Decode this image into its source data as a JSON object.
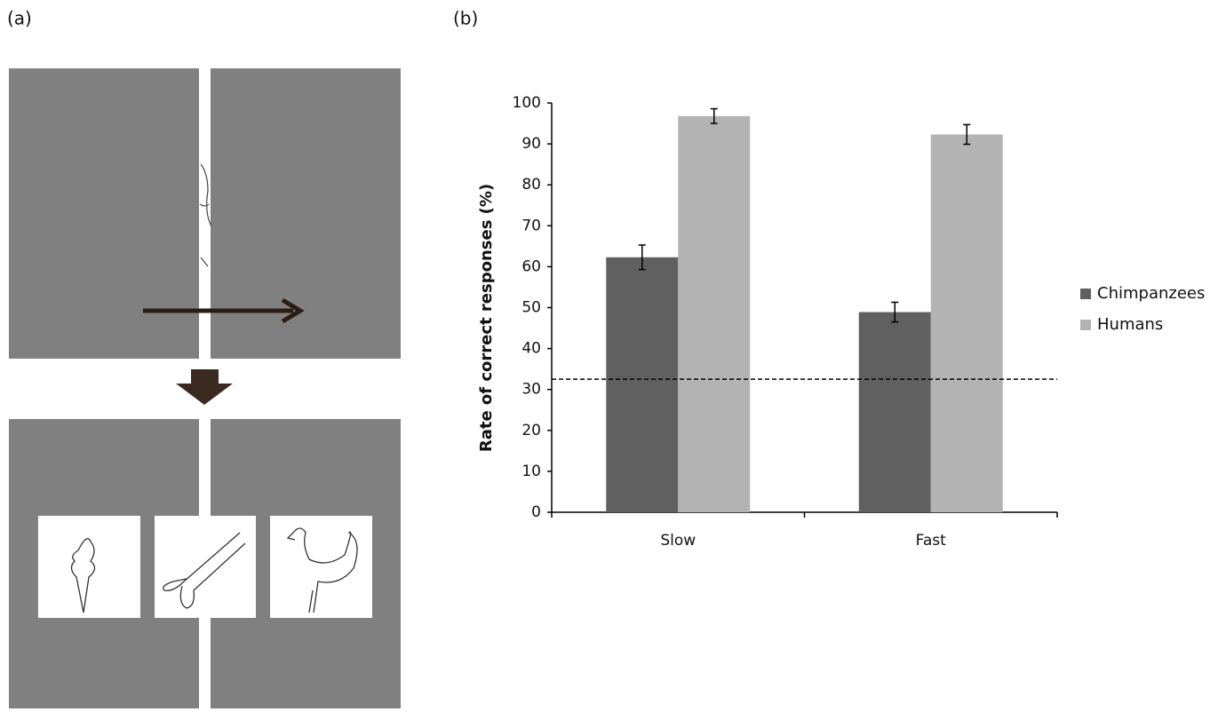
{
  "panel_labels": {
    "a": "(a)",
    "b": "(b)"
  },
  "chart_data": {
    "type": "bar",
    "y_label": "Rate of correct responses (%)",
    "categories": [
      "Slow",
      "Fast"
    ],
    "series": [
      {
        "name": "Chimpanzees",
        "color": "#606060",
        "values": [
          62.3,
          48.9
        ],
        "errors": [
          3,
          2.4
        ]
      },
      {
        "name": "Humans",
        "color": "#b3b3b3",
        "values": [
          96.8,
          92.3
        ],
        "errors": [
          1.8,
          2.4
        ]
      }
    ],
    "chance_level": 32.5,
    "ylim": [
      0,
      100
    ],
    "yticks": [
      0,
      10,
      20,
      30,
      40,
      50,
      60,
      70,
      80,
      90,
      100
    ],
    "legend": "right"
  }
}
